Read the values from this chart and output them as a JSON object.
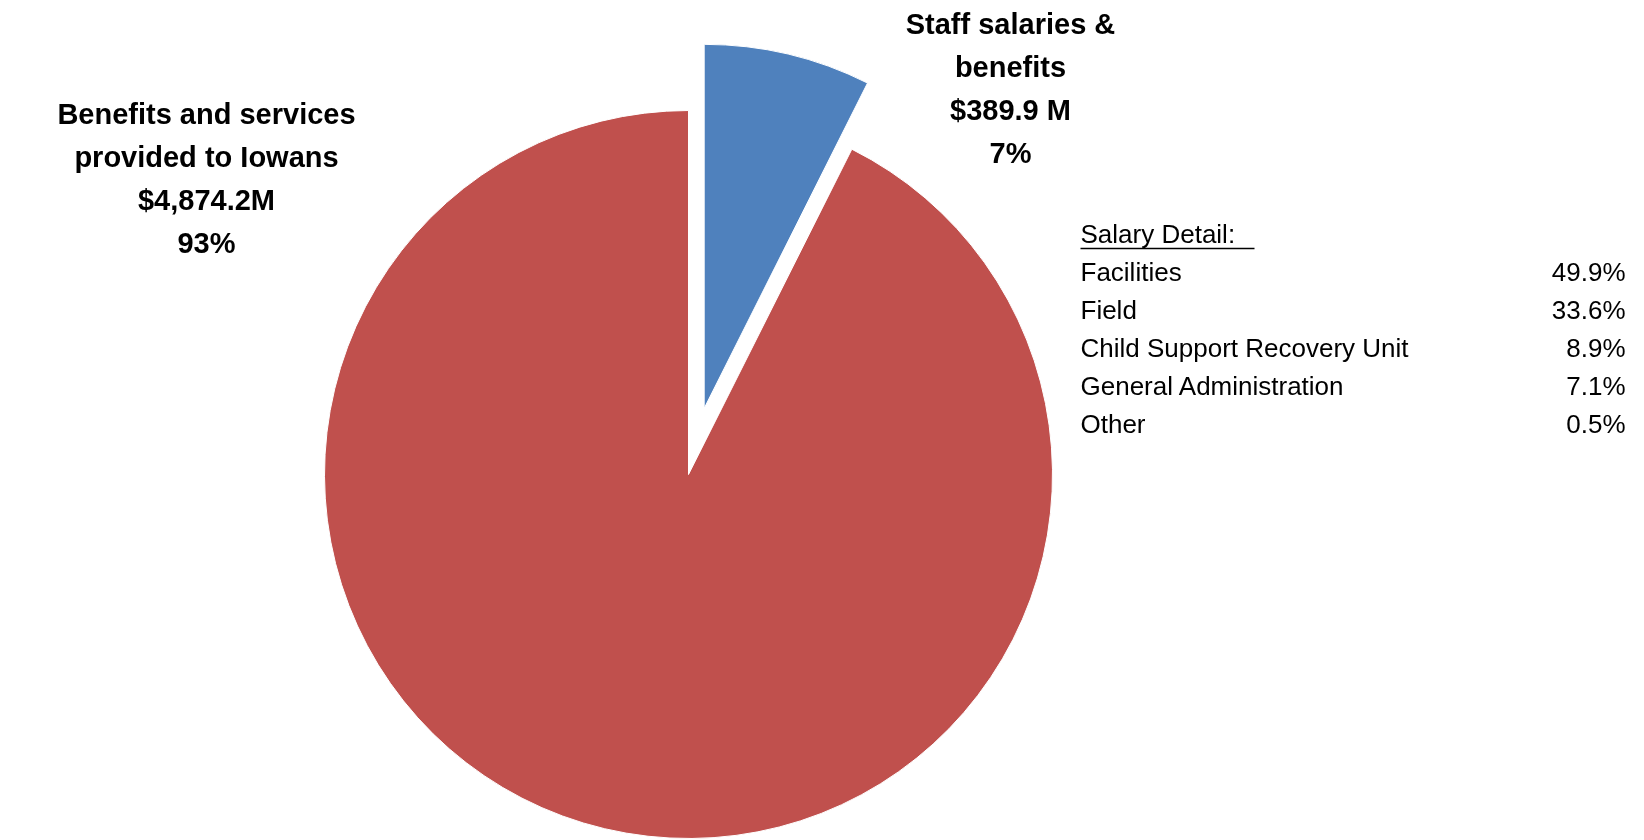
{
  "chart_data": {
    "type": "pie",
    "categories": [
      "Staff salaries & benefits",
      "Benefits and services provided to Iowans"
    ],
    "values": [
      389.9,
      4874.2
    ],
    "colors": [
      "#4f81bd",
      "#c0504d"
    ],
    "value_labels": [
      "$389.9 M",
      "$4,874.2M"
    ],
    "annotations": [
      "7%",
      "93%",
      "Salary  Detail:",
      "Facilities 49.9%",
      "Field 33.6%",
      "Child Support Recovery Unit 8.9%",
      "General Administration 7.1%",
      "Other 0.5%"
    ]
  }
}
